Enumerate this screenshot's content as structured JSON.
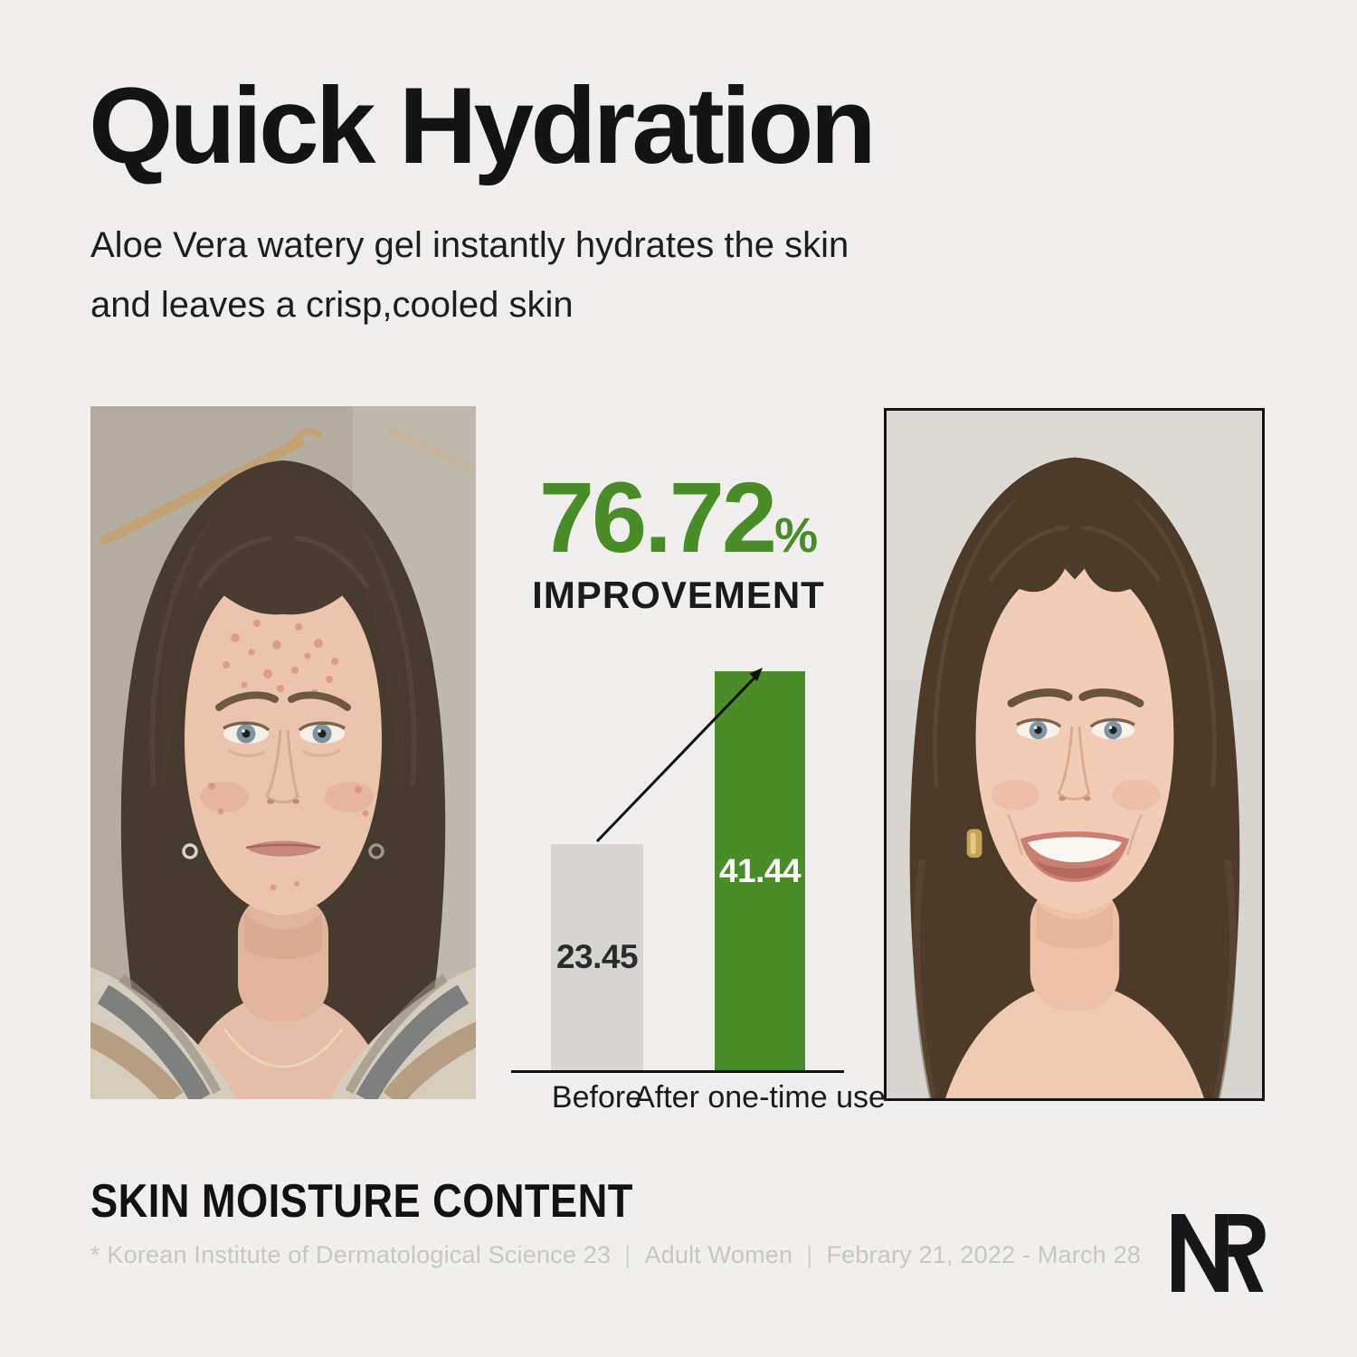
{
  "page": {
    "background_color": "#f0efed"
  },
  "header": {
    "title": "Quick Hydration",
    "subtitle_line1": "Aloe Vera watery gel instantly hydrates the skin",
    "subtitle_line2": "and leaves a crisp,cooled skin"
  },
  "stat": {
    "value": "76.72",
    "unit": "%",
    "label": "IMPROVEMENT",
    "accent_color": "#4a8c27"
  },
  "chart_data": {
    "type": "bar",
    "categories": [
      "Before",
      "After one-time use"
    ],
    "values": [
      23.45,
      41.44
    ],
    "value_labels": [
      "23.45",
      "41.44"
    ],
    "bar_colors": [
      "#d7d5d2",
      "#4a8c27"
    ],
    "value_label_colors": [
      "#2b2b2b",
      "#ffffff"
    ],
    "title": "SKIN MOISTURE CONTENT",
    "annotation": "76.72% IMPROVEMENT",
    "xlabel": "",
    "ylabel": "",
    "ylim": [
      0,
      43.5
    ],
    "grid": false,
    "legend": false,
    "axis_line_color": "#111111"
  },
  "section": {
    "heading": "SKIN MOISTURE CONTENT"
  },
  "footnote": {
    "source": "* Korean Institute of Dermatological Science 23",
    "separator": "|",
    "subjects": "Adult Women",
    "period": "Febrary 21, 2022 - March 28"
  },
  "logo": {
    "text": "NR"
  }
}
